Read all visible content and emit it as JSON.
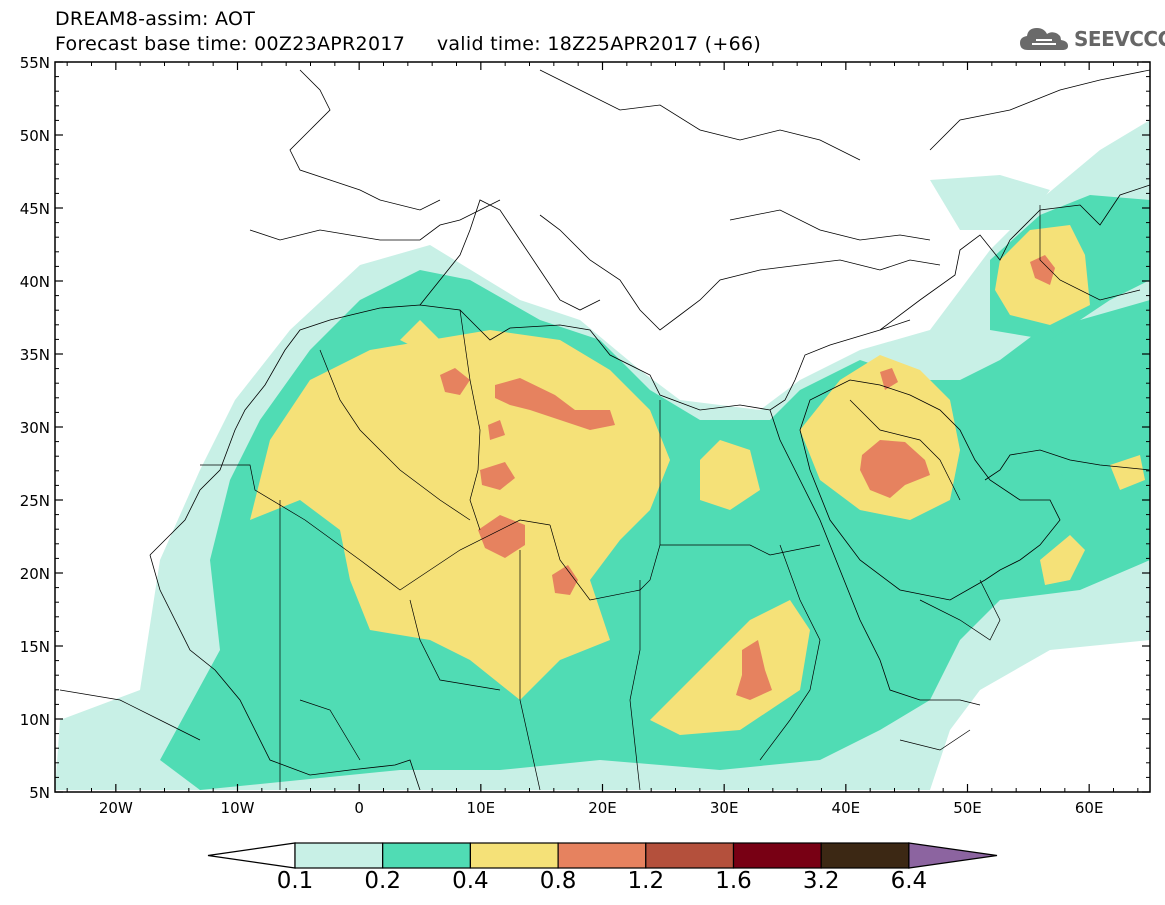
{
  "header": {
    "line1": "DREAM8-assim: AOT",
    "line2": "Forecast base time: 00Z23APR2017     valid time: 18Z25APR2017 (+66)"
  },
  "logo": {
    "text": "SEEVCCC",
    "icon": "cloud-icon"
  },
  "map": {
    "lon_range": [
      -25,
      65
    ],
    "lat_range": [
      5,
      55
    ],
    "lat_ticks": [
      "55N",
      "50N",
      "45N",
      "40N",
      "35N",
      "30N",
      "25N",
      "20N",
      "15N",
      "10N",
      "5N"
    ],
    "lon_ticks": [
      "20W",
      "10W",
      "0",
      "10E",
      "20E",
      "30E",
      "40E",
      "50E",
      "60E"
    ],
    "frame_color": "#000000",
    "ocean_color": "#ffffff"
  },
  "legend": {
    "labels": [
      "0.1",
      "0.2",
      "0.4",
      "0.8",
      "1.2",
      "1.6",
      "3.2",
      "6.4"
    ],
    "colors": [
      "#ffffff",
      "#c8f0e6",
      "#50dcb4",
      "#f5e178",
      "#e6825f",
      "#b4503c",
      "#780014",
      "#3c2814",
      "#8c64a0"
    ]
  }
}
